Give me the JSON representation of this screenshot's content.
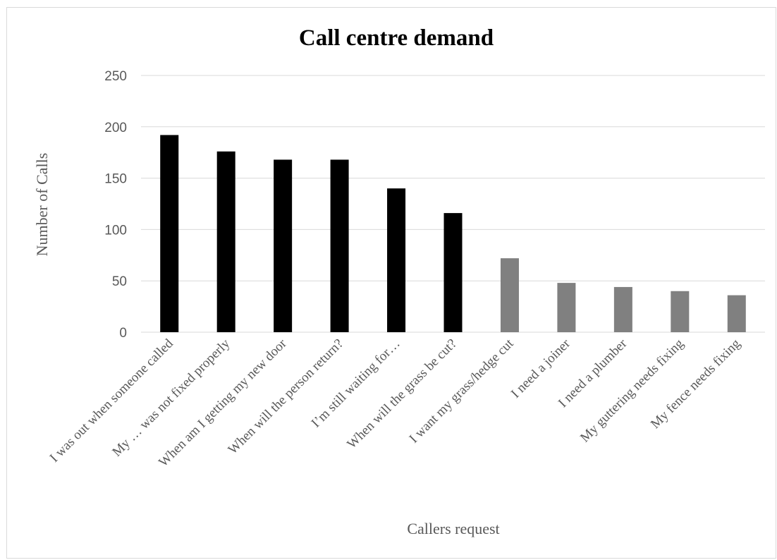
{
  "chart_data": {
    "type": "bar",
    "title": "Call centre demand",
    "xlabel": "Callers request",
    "ylabel": "Number of Calls",
    "ylim": [
      0,
      250
    ],
    "yticks": [
      0,
      50,
      100,
      150,
      200,
      250
    ],
    "grid": true,
    "legend": "none",
    "categories": [
      "I was out when someone called",
      "My … was not fixed properly",
      "When am I getting my new door",
      "When will the person return?",
      "I’m still waiting for…",
      "When will the grass be cut?",
      "I want my grass/hedge cut",
      "I need a joiner",
      "I need a plumber",
      "My guttering needs fixing",
      "My fence needs fixing"
    ],
    "values": [
      192,
      176,
      168,
      168,
      140,
      116,
      72,
      48,
      44,
      40,
      36
    ],
    "colors": [
      "#000000",
      "#000000",
      "#000000",
      "#000000",
      "#000000",
      "#000000",
      "#808080",
      "#808080",
      "#808080",
      "#808080",
      "#808080"
    ],
    "gridline_color": "#d9d9d9"
  }
}
